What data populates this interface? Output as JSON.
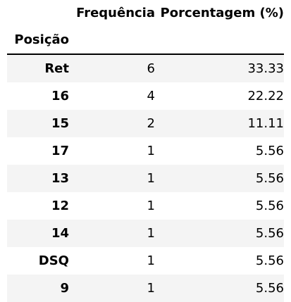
{
  "table": {
    "columns": [
      "Frequência",
      "Porcentagem (%)"
    ],
    "index_name": "Posição",
    "rows": [
      {
        "label": "Ret",
        "freq": "6",
        "pct": "33.33"
      },
      {
        "label": "16",
        "freq": "4",
        "pct": "22.22"
      },
      {
        "label": "15",
        "freq": "2",
        "pct": "11.11"
      },
      {
        "label": "17",
        "freq": "1",
        "pct": "5.56"
      },
      {
        "label": "13",
        "freq": "1",
        "pct": "5.56"
      },
      {
        "label": "12",
        "freq": "1",
        "pct": "5.56"
      },
      {
        "label": "14",
        "freq": "1",
        "pct": "5.56"
      },
      {
        "label": "DSQ",
        "freq": "1",
        "pct": "5.56"
      },
      {
        "label": "9",
        "freq": "1",
        "pct": "5.56"
      }
    ]
  }
}
